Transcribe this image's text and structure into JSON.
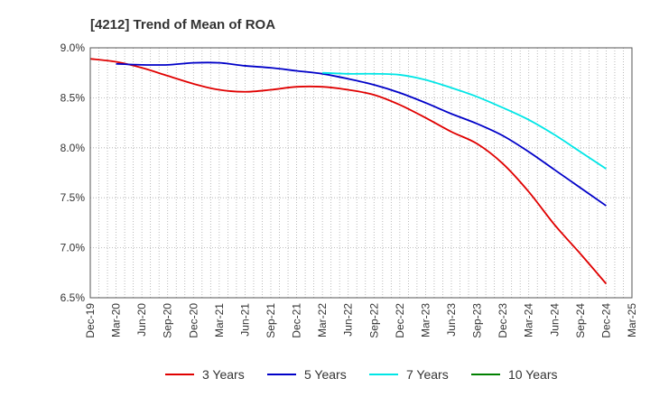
{
  "chart_data": {
    "type": "line",
    "title": "[4212]  Trend of Mean of ROA",
    "xlabel": "",
    "ylabel": "",
    "categories": [
      "Dec-19",
      "Mar-20",
      "Jun-20",
      "Sep-20",
      "Dec-20",
      "Mar-21",
      "Jun-21",
      "Sep-21",
      "Dec-21",
      "Mar-22",
      "Jun-22",
      "Sep-22",
      "Dec-22",
      "Mar-23",
      "Jun-23",
      "Sep-23",
      "Dec-23",
      "Mar-24",
      "Jun-24",
      "Sep-24",
      "Dec-24",
      "Mar-25"
    ],
    "yticks": [
      "9.0%",
      "8.5%",
      "8.0%",
      "7.5%",
      "7.0%",
      "6.5%"
    ],
    "ylim": [
      6.5,
      9.0
    ],
    "grid": true,
    "legend_position": "bottom",
    "series": [
      {
        "name": "3 Years",
        "color": "#e00000",
        "values": [
          8.89,
          8.86,
          8.8,
          8.72,
          8.64,
          8.58,
          8.56,
          8.58,
          8.61,
          8.61,
          8.58,
          8.53,
          8.43,
          8.3,
          8.16,
          8.04,
          7.84,
          7.56,
          7.23,
          6.94,
          6.64,
          null
        ]
      },
      {
        "name": "5 Years",
        "color": "#0000c8",
        "values": [
          null,
          8.84,
          8.83,
          8.83,
          8.85,
          8.85,
          8.82,
          8.8,
          8.77,
          8.74,
          8.69,
          8.63,
          8.55,
          8.45,
          8.34,
          8.24,
          8.12,
          7.96,
          7.78,
          7.6,
          7.42,
          null
        ]
      },
      {
        "name": "7 Years",
        "color": "#00e6e6",
        "values": [
          null,
          null,
          null,
          null,
          null,
          null,
          null,
          null,
          null,
          8.75,
          8.74,
          8.74,
          8.73,
          8.68,
          8.6,
          8.51,
          8.4,
          8.28,
          8.13,
          7.96,
          7.79,
          null
        ]
      },
      {
        "name": "10 Years",
        "color": "#008000",
        "values": [
          null,
          null,
          null,
          null,
          null,
          null,
          null,
          null,
          null,
          null,
          null,
          null,
          null,
          null,
          null,
          null,
          null,
          null,
          null,
          null,
          null,
          null
        ]
      }
    ]
  }
}
